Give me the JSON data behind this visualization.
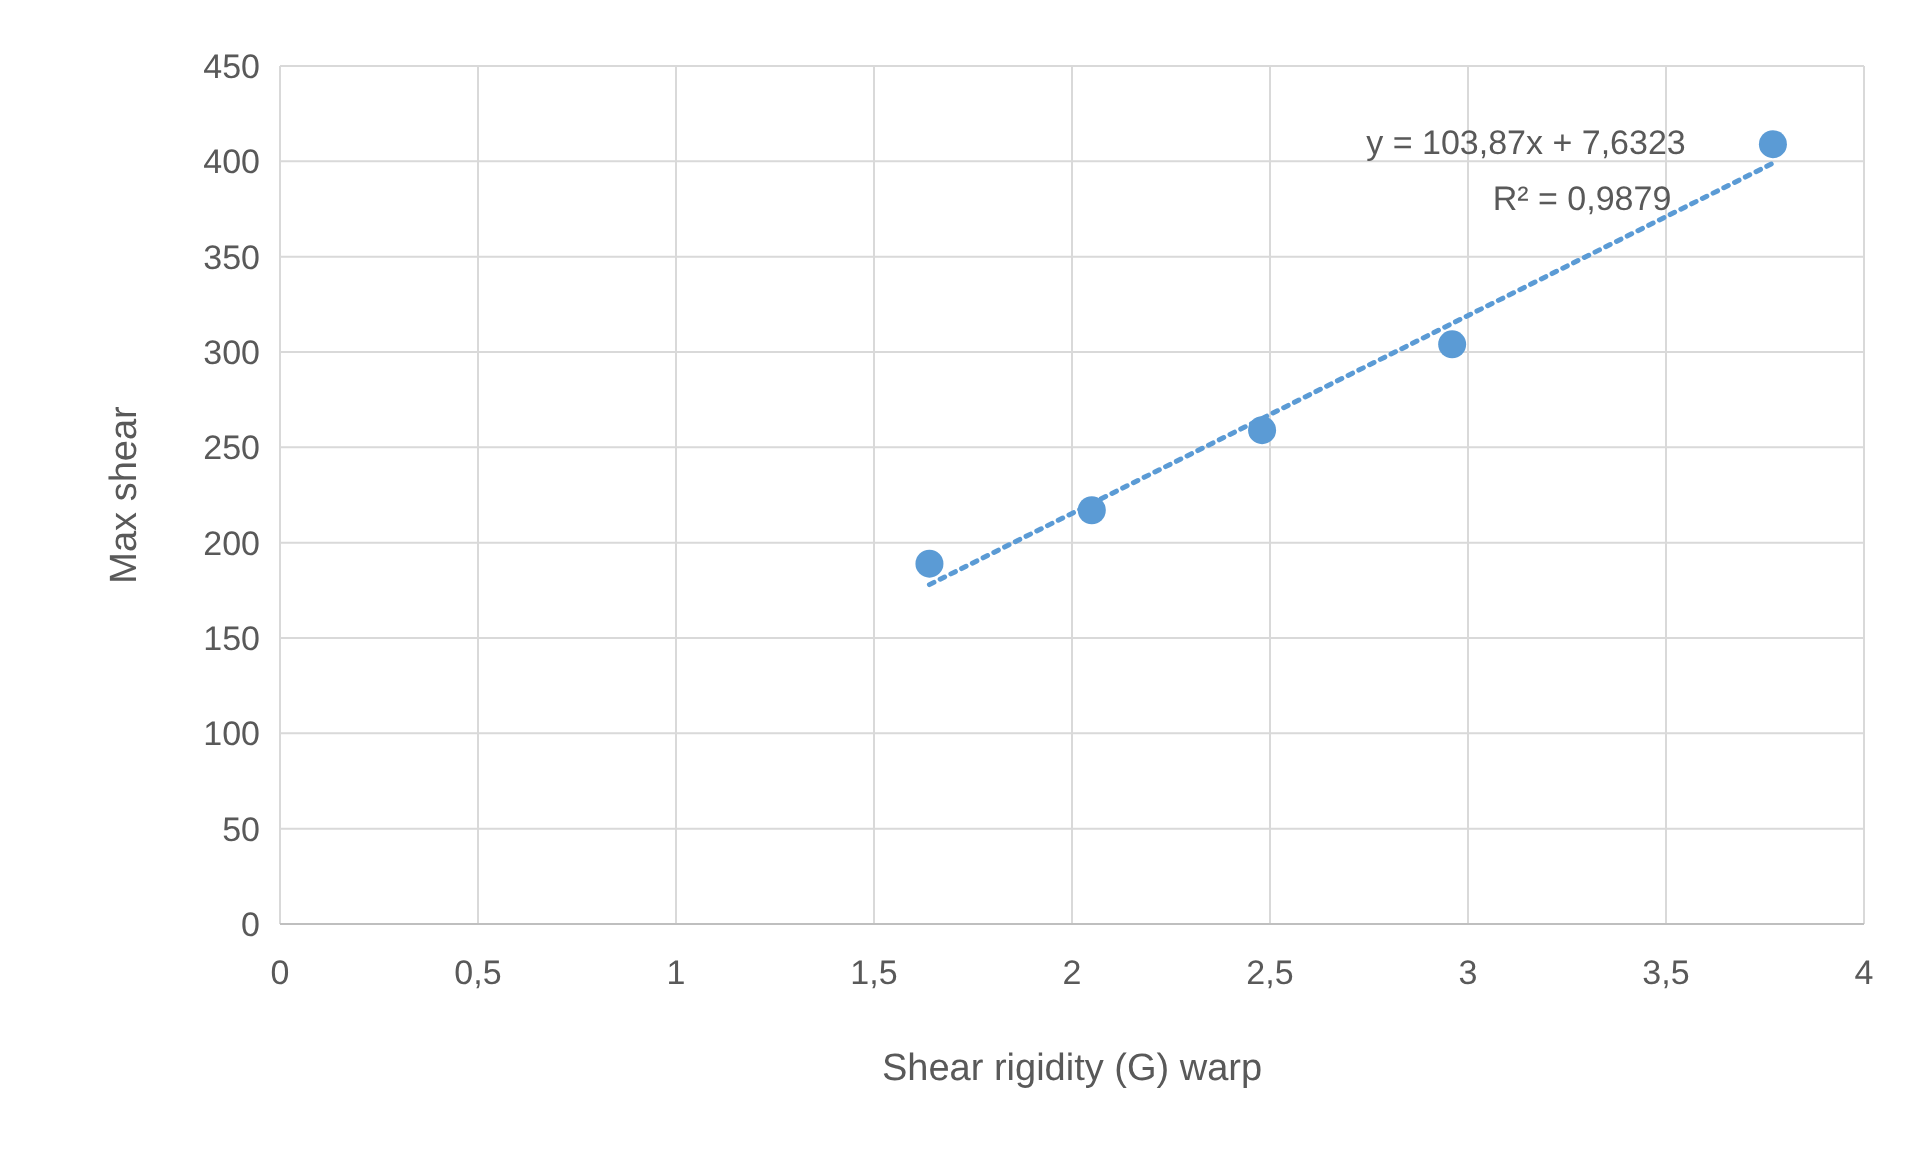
{
  "chart_data": {
    "type": "scatter",
    "xlabel": "Shear rigidity (G) warp",
    "ylabel": "Max shear",
    "series": [
      {
        "color": "#5b9bd5",
        "x": [
          1.64,
          2.05,
          2.48,
          2.96,
          3.77
        ],
        "values": [
          189,
          217,
          259,
          304,
          409
        ],
        "marker": "circle"
      },
      {
        "type": "line",
        "color": "#5b9bd5",
        "x": [
          1.64,
          3.77
        ],
        "values": [
          178,
          399
        ],
        "line_style": "dotted"
      }
    ],
    "xlim": [
      0,
      4
    ],
    "xticks": [
      0,
      {
        "value": 0.5,
        "label": "0,5"
      },
      1,
      {
        "value": 1.5,
        "label": "1,5"
      },
      2,
      {
        "value": 2.5,
        "label": "2,5"
      },
      3,
      {
        "value": 3.5,
        "label": "3,5"
      },
      4
    ],
    "ylim": [
      0,
      450
    ],
    "yticks": [
      0,
      50,
      100,
      150,
      200,
      250,
      300,
      350,
      400,
      450
    ],
    "grid": true,
    "annotations": [
      "y = 103,87x + 7,6323",
      "R² = 0,9879"
    ]
  }
}
